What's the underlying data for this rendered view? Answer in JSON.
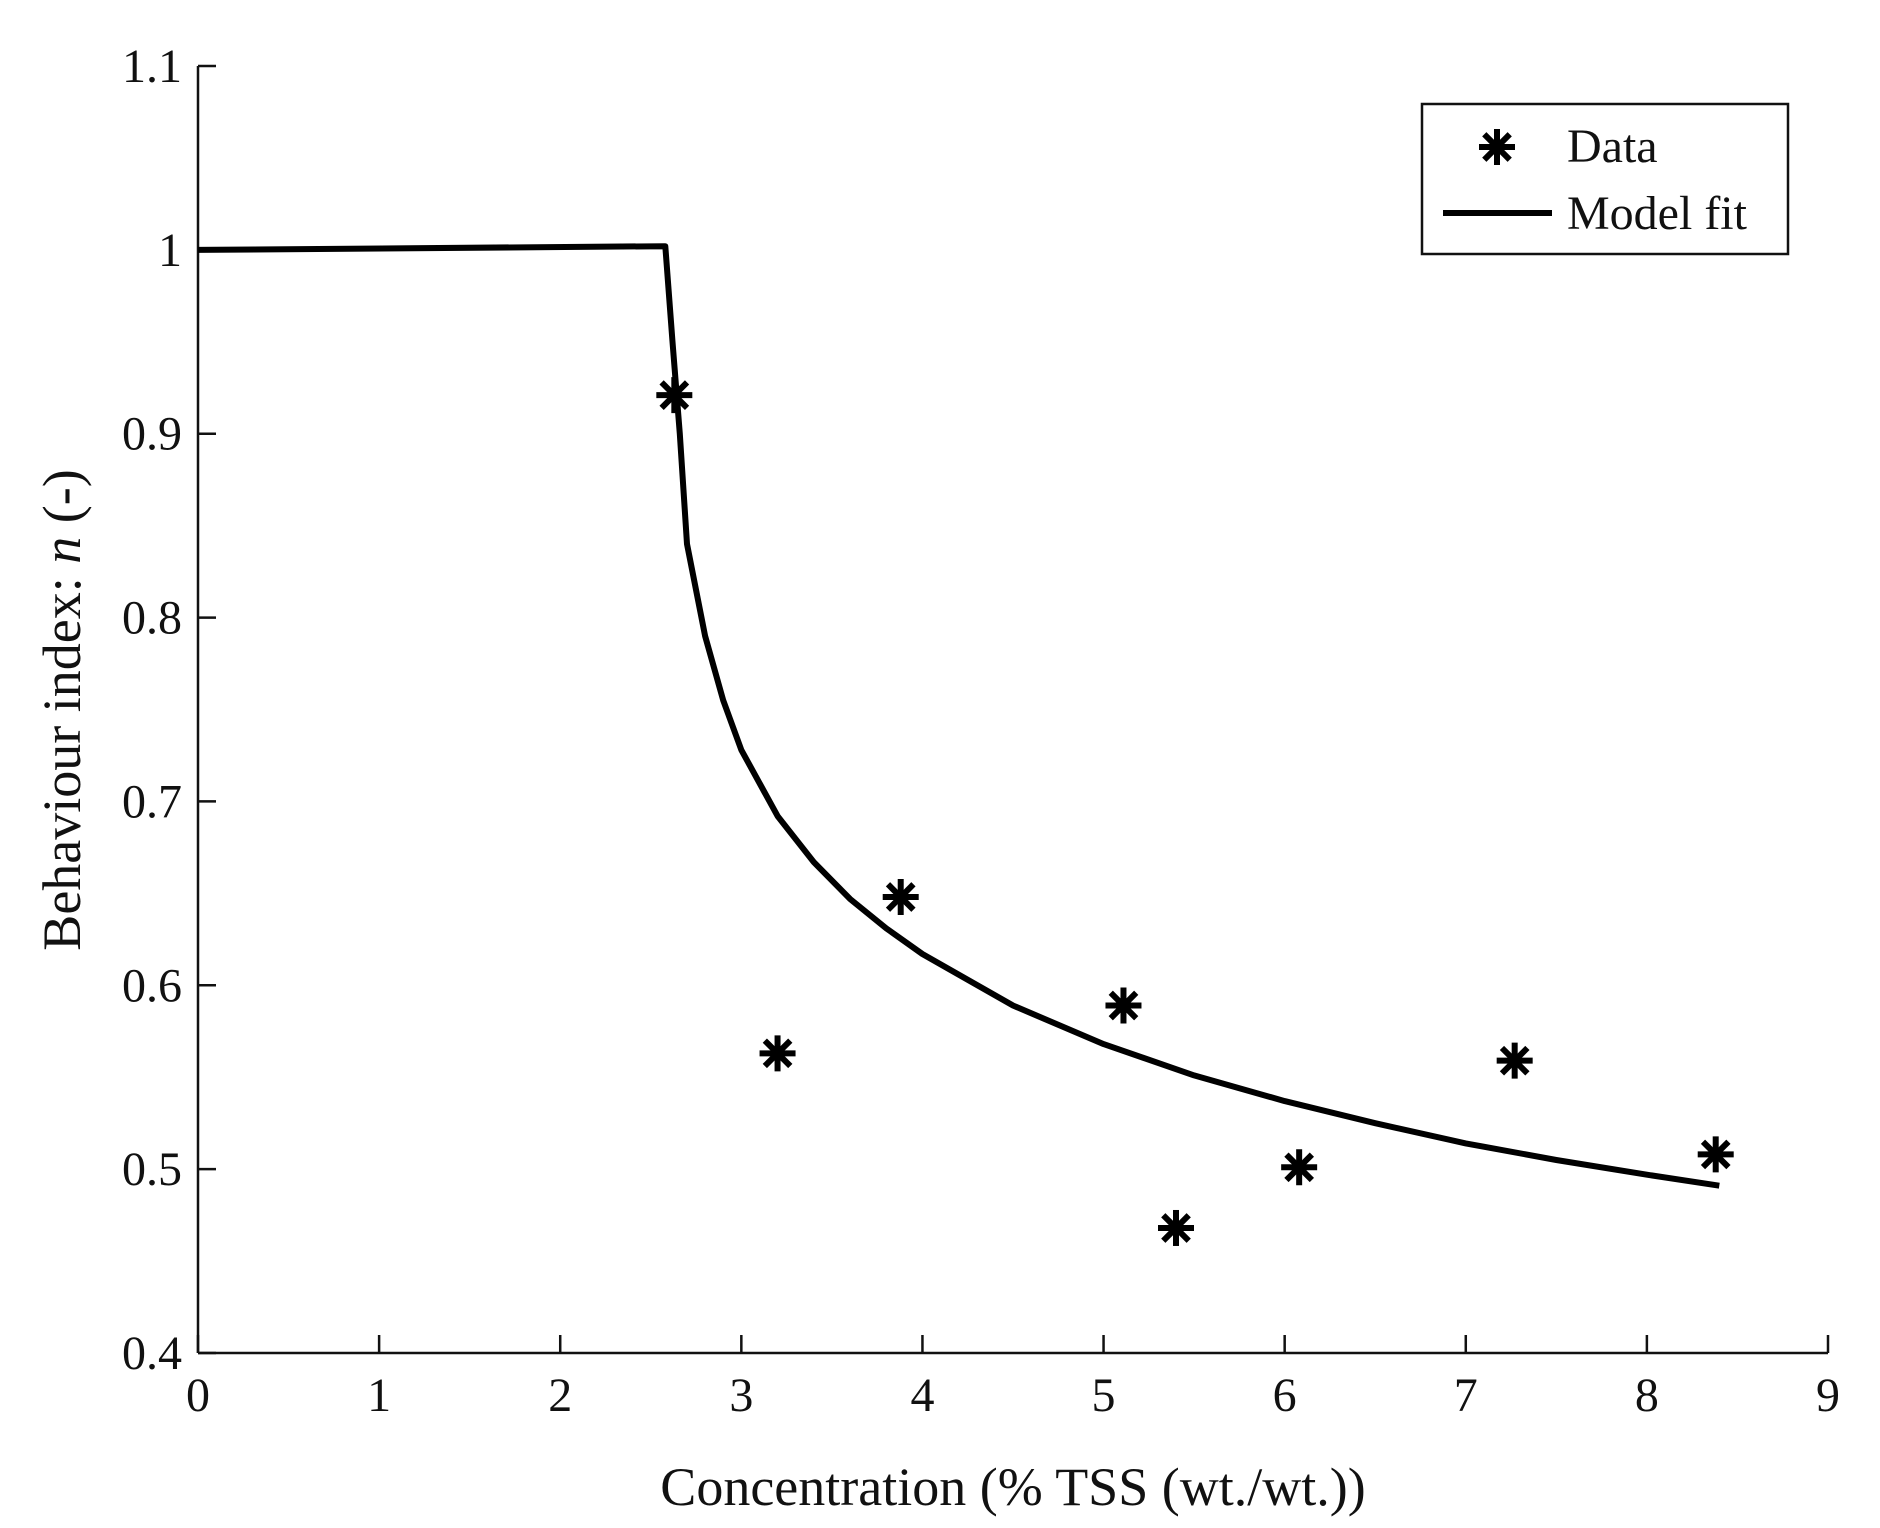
{
  "chart_data": {
    "type": "scatter",
    "title": "",
    "xlabel": "Concentration (% TSS (wt./wt.))",
    "ylabel_prefix": "Behaviour index: ",
    "ylabel_symbol": "n",
    "ylabel_suffix": " (-)",
    "xlim": [
      0,
      9
    ],
    "ylim": [
      0.4,
      1.1
    ],
    "x_ticks": [
      0,
      1,
      2,
      3,
      4,
      5,
      6,
      7,
      8,
      9
    ],
    "x_tick_labels": [
      "0",
      "1",
      "2",
      "3",
      "4",
      "5",
      "6",
      "7",
      "8",
      "9"
    ],
    "y_ticks": [
      0.4,
      0.5,
      0.6,
      0.7,
      0.8,
      0.9,
      1.0,
      1.1
    ],
    "y_tick_labels": [
      "0.4",
      "0.5",
      "0.6",
      "0.7",
      "0.8",
      "0.9",
      "1",
      "1.1"
    ],
    "grid": false,
    "legend_position": "top-right",
    "series": [
      {
        "name": "Data",
        "kind": "markers",
        "marker": "asterisk",
        "color": "#000000",
        "points": [
          {
            "x": 2.63,
            "y": 0.921
          },
          {
            "x": 3.2,
            "y": 0.563
          },
          {
            "x": 3.88,
            "y": 0.648
          },
          {
            "x": 5.11,
            "y": 0.589
          },
          {
            "x": 5.4,
            "y": 0.468
          },
          {
            "x": 6.08,
            "y": 0.501
          },
          {
            "x": 7.27,
            "y": 0.559
          },
          {
            "x": 8.38,
            "y": 0.508
          }
        ]
      },
      {
        "name": "Model fit",
        "kind": "line",
        "color": "#000000",
        "points": [
          {
            "x": 0,
            "y": 1.0
          },
          {
            "x": 2.58,
            "y": 1.002
          },
          {
            "x": 2.62,
            "y": 0.95
          },
          {
            "x": 2.66,
            "y": 0.9
          },
          {
            "x": 2.7,
            "y": 0.84
          },
          {
            "x": 2.8,
            "y": 0.79
          },
          {
            "x": 2.9,
            "y": 0.755
          },
          {
            "x": 3.0,
            "y": 0.728
          },
          {
            "x": 3.2,
            "y": 0.692
          },
          {
            "x": 3.4,
            "y": 0.667
          },
          {
            "x": 3.6,
            "y": 0.647
          },
          {
            "x": 3.8,
            "y": 0.631
          },
          {
            "x": 4.0,
            "y": 0.617
          },
          {
            "x": 4.5,
            "y": 0.589
          },
          {
            "x": 5.0,
            "y": 0.568
          },
          {
            "x": 5.5,
            "y": 0.551
          },
          {
            "x": 6.0,
            "y": 0.537
          },
          {
            "x": 6.5,
            "y": 0.525
          },
          {
            "x": 7.0,
            "y": 0.514
          },
          {
            "x": 7.5,
            "y": 0.505
          },
          {
            "x": 8.0,
            "y": 0.497
          },
          {
            "x": 8.4,
            "y": 0.491
          }
        ]
      }
    ]
  }
}
